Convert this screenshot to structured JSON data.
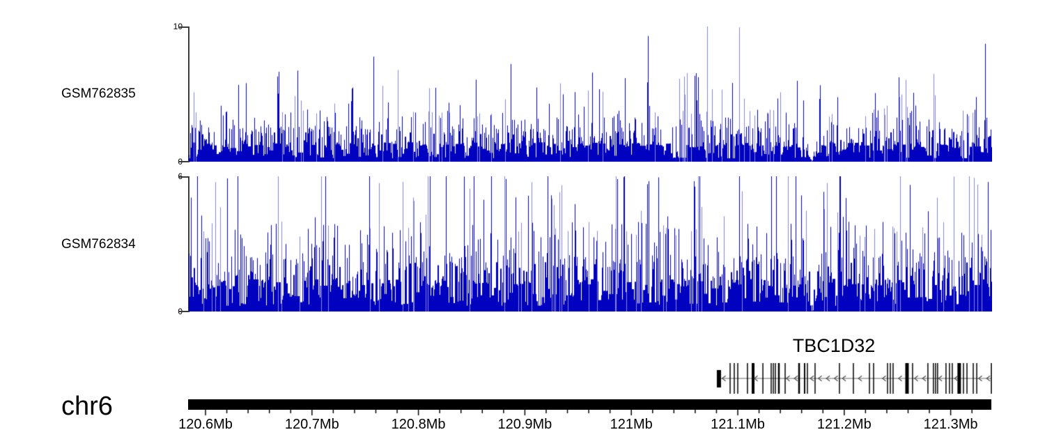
{
  "chart_data": {
    "type": "area",
    "description": "Genome browser view: two ChIP-seq coverage tracks over chr6 with TBC1D32 gene model and megabase scale bar",
    "chromosome": "chr6",
    "x_unit": "Mb",
    "x_range_mb": [
      120.584,
      121.338
    ],
    "grid": false,
    "legend": "none",
    "tracks": [
      {
        "name": "GSM762835",
        "ylim": [
          0,
          10
        ],
        "y_top_label": "10",
        "y_bottom_label": "0",
        "signal": {
          "seed": 173,
          "clamp": 10,
          "low_p": 0.52,
          "low_min": 0.25,
          "low_max": 1.45,
          "mid_p": 0.8,
          "mid_min": 1.1,
          "mid_max": 2.6,
          "med_p": 0.935,
          "med_min": 2.2,
          "med_max": 3.9,
          "spike_min": 3.4,
          "spike_max": 6.8,
          "rare_p": 0.005,
          "rare_min": 7.2,
          "rare_max": 10,
          "forced_peaks_mb": [
            [
              121.0712,
              10.0
            ],
            [
              121.0156,
              9.3
            ]
          ],
          "gap_center_mb": 121.169,
          "gap_half_mb": 0.006
        }
      },
      {
        "name": "GSM762834",
        "ylim": [
          0,
          6
        ],
        "y_top_label": "6",
        "y_bottom_label": "0",
        "signal": {
          "seed": 977,
          "clamp": 6,
          "low_p": 0.5,
          "low_min": 0.25,
          "low_max": 1.45,
          "mid_p": 0.78,
          "mid_min": 1.1,
          "mid_max": 2.5,
          "med_p": 0.92,
          "med_min": 2.3,
          "med_max": 4.0,
          "spike_min": 3.4,
          "spike_max": 6.5,
          "rare_p": 0.012,
          "rare_min": 5.6,
          "rare_max": 7.2,
          "forced_peaks_mb": [
            [
              120.7127,
              6.0
            ],
            [
              120.7537,
              6.0
            ],
            [
              121.1641,
              6.0
            ]
          ],
          "gap_center_mb": 121.169,
          "gap_half_mb": 0.006
        }
      }
    ],
    "gene": {
      "name": "TBC1D32",
      "strand": "-",
      "start_mb": 121.0823,
      "end_mb": 121.3382,
      "exons": [
        {
          "mb": 121.0823,
          "w": 6,
          "tall": false
        },
        {
          "mb": 121.0928,
          "w": 1.5,
          "tall": true
        },
        {
          "mb": 121.0967,
          "w": 1.5,
          "tall": true
        },
        {
          "mb": 121.1,
          "w": 1.5,
          "tall": true
        },
        {
          "mb": 121.1091,
          "w": 1.5,
          "tall": true
        },
        {
          "mb": 121.1144,
          "w": 4,
          "tall": true
        },
        {
          "mb": 121.1236,
          "w": 1.5,
          "tall": true
        },
        {
          "mb": 121.1314,
          "w": 1.5,
          "tall": true
        },
        {
          "mb": 121.1334,
          "w": 1.5,
          "tall": true
        },
        {
          "mb": 121.1353,
          "w": 1.5,
          "tall": true
        },
        {
          "mb": 121.1386,
          "w": 2.5,
          "tall": true
        },
        {
          "mb": 121.1445,
          "w": 1.5,
          "tall": true
        },
        {
          "mb": 121.1576,
          "w": 2.5,
          "tall": true
        },
        {
          "mb": 121.1628,
          "w": 2,
          "tall": true
        },
        {
          "mb": 121.1654,
          "w": 1.5,
          "tall": true
        },
        {
          "mb": 121.1726,
          "w": 1.5,
          "tall": true
        },
        {
          "mb": 121.1955,
          "w": 1.5,
          "tall": true
        },
        {
          "mb": 121.2086,
          "w": 1.5,
          "tall": true
        },
        {
          "mb": 121.2237,
          "w": 1.5,
          "tall": true
        },
        {
          "mb": 121.2276,
          "w": 1.5,
          "tall": true
        },
        {
          "mb": 121.2407,
          "w": 1.5,
          "tall": true
        },
        {
          "mb": 121.2433,
          "w": 1.5,
          "tall": true
        },
        {
          "mb": 121.2459,
          "w": 1.5,
          "tall": true
        },
        {
          "mb": 121.259,
          "w": 5,
          "tall": true
        },
        {
          "mb": 121.2642,
          "w": 1.5,
          "tall": true
        },
        {
          "mb": 121.2786,
          "w": 1.5,
          "tall": true
        },
        {
          "mb": 121.2838,
          "w": 1.5,
          "tall": true
        },
        {
          "mb": 121.2858,
          "w": 1.5,
          "tall": true
        },
        {
          "mb": 121.2877,
          "w": 1.5,
          "tall": true
        },
        {
          "mb": 121.2956,
          "w": 1.5,
          "tall": true
        },
        {
          "mb": 121.2989,
          "w": 1.5,
          "tall": true
        },
        {
          "mb": 121.3015,
          "w": 1.5,
          "tall": true
        },
        {
          "mb": 121.308,
          "w": 5,
          "tall": true
        },
        {
          "mb": 121.312,
          "w": 1.5,
          "tall": true
        },
        {
          "mb": 121.3153,
          "w": 1.5,
          "tall": true
        },
        {
          "mb": 121.3212,
          "w": 1.5,
          "tall": true
        },
        {
          "mb": 121.3245,
          "w": 1.5,
          "tall": true
        },
        {
          "mb": 121.3382,
          "w": 1.5,
          "tall": true
        }
      ]
    },
    "axis": {
      "major_ticks": [
        {
          "mb": 120.6,
          "label": "120.6Mb"
        },
        {
          "mb": 120.7,
          "label": "120.7Mb"
        },
        {
          "mb": 120.8,
          "label": "120.8Mb"
        },
        {
          "mb": 120.9,
          "label": "120.9Mb"
        },
        {
          "mb": 121.0,
          "label": "121Mb"
        },
        {
          "mb": 121.1,
          "label": "121.1Mb"
        },
        {
          "mb": 121.2,
          "label": "121.2Mb"
        },
        {
          "mb": 121.3,
          "label": "121.3Mb"
        }
      ],
      "minor_step_mb": 0.02
    },
    "colors": {
      "signal": "#0101c0",
      "signal_light": "#8585d8",
      "exon": "#000000",
      "gene_line": "#666666",
      "arrow": "#444444",
      "axis": "#3a3a3a",
      "chrom_bar": "#000000",
      "text": "#000000"
    }
  }
}
